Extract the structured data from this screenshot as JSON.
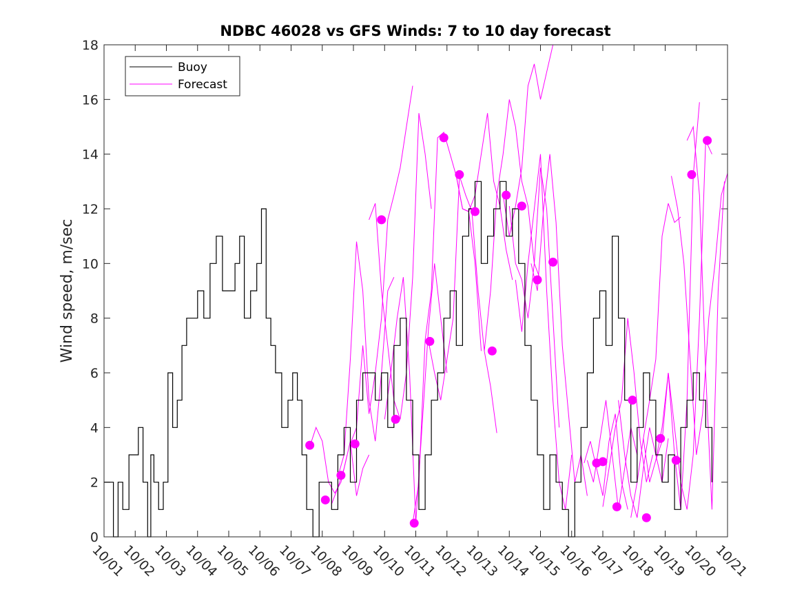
{
  "chart_data": {
    "type": "line",
    "title": "NDBC 46028 vs GFS Winds: 7 to 10 day forecast",
    "xlabel": "",
    "ylabel": "Wind speed, m/sec",
    "xlim": [
      0,
      20
    ],
    "ylim": [
      0,
      18
    ],
    "yticks": [
      0,
      2,
      4,
      6,
      8,
      10,
      12,
      14,
      16,
      18
    ],
    "xtick_labels": [
      "10/01",
      "10/02",
      "10/03",
      "10/04",
      "10/05",
      "10/06",
      "10/07",
      "10/08",
      "10/09",
      "10/10",
      "10/11",
      "10/12",
      "10/13",
      "10/14",
      "10/15",
      "10/16",
      "10/17",
      "10/18",
      "10/19",
      "10/20",
      "10/21"
    ],
    "legend": {
      "position": "top-left",
      "entries": [
        {
          "name": "Buoy",
          "color": "#000000"
        },
        {
          "name": "Forecast",
          "color": "#ff00ff"
        }
      ]
    },
    "buoy": {
      "name": "Buoy",
      "color": "#000000",
      "x": [
        0,
        0.15,
        0.3,
        0.45,
        0.6,
        0.8,
        1.0,
        1.1,
        1.25,
        1.4,
        1.5,
        1.6,
        1.75,
        1.9,
        2.05,
        2.2,
        2.35,
        2.5,
        2.65,
        2.8,
        3.0,
        3.2,
        3.4,
        3.6,
        3.8,
        4.0,
        4.2,
        4.35,
        4.5,
        4.7,
        4.9,
        5.05,
        5.2,
        5.35,
        5.5,
        5.7,
        5.9,
        6.05,
        6.2,
        6.35,
        6.5,
        6.7,
        6.9,
        7.1,
        7.3,
        7.5,
        7.7,
        7.9,
        8.1,
        8.3,
        8.5,
        8.7,
        8.9,
        9.1,
        9.3,
        9.5,
        9.7,
        9.9,
        10.1,
        10.3,
        10.5,
        10.7,
        10.9,
        11.1,
        11.3,
        11.5,
        11.7,
        11.9,
        12.1,
        12.3,
        12.5,
        12.7,
        12.9,
        13.1,
        13.3,
        13.5,
        13.7,
        13.9,
        14.1,
        14.3,
        14.5,
        14.7,
        14.9,
        15.1,
        15.3,
        15.5,
        15.7,
        15.9,
        16.1,
        16.3,
        16.5,
        16.7,
        16.9,
        17.1,
        17.3,
        17.5,
        17.7,
        17.9,
        18.1,
        18.3,
        18.5,
        18.7,
        18.9,
        19.1,
        19.3,
        19.5
      ],
      "values": [
        2,
        2,
        0,
        2,
        1,
        3,
        3,
        4,
        2,
        0,
        3,
        2,
        1,
        2,
        6,
        4,
        5,
        7,
        8,
        8,
        9,
        8,
        10,
        11,
        9,
        9,
        10,
        11,
        8,
        9,
        10,
        12,
        8,
        7,
        6,
        4,
        5,
        6,
        5,
        3,
        1,
        0,
        2,
        2,
        1,
        3,
        4,
        2,
        5,
        6,
        6,
        5,
        6,
        4,
        7,
        8,
        5,
        3,
        1,
        3,
        5,
        6,
        8,
        9,
        7,
        11,
        12,
        13,
        10,
        11,
        12,
        13,
        11,
        12,
        10,
        7,
        5,
        3,
        1,
        3,
        2,
        1,
        0,
        2,
        4,
        6,
        8,
        9,
        7,
        11,
        8,
        5,
        2,
        4,
        6,
        5,
        3,
        2,
        3,
        1,
        4,
        5,
        6,
        5,
        4,
        2
      ]
    },
    "forecast_series": [
      {
        "name": "Forecast",
        "x": [
          6.6,
          6.8,
          7.0,
          7.2,
          7.4,
          7.6,
          7.8
        ],
        "values": [
          3.3,
          4.0,
          3.5,
          2.0,
          1.6,
          2.0,
          3.0
        ]
      },
      {
        "name": "Forecast",
        "x": [
          7.3,
          7.5,
          7.7,
          7.9,
          8.1,
          8.3,
          8.5
        ],
        "values": [
          1.2,
          1.8,
          2.5,
          3.5,
          1.5,
          2.5,
          3.0
        ]
      },
      {
        "name": "Forecast",
        "x": [
          7.5,
          7.7,
          7.9,
          8.1,
          8.3,
          8.5,
          8.7,
          8.9,
          9.1,
          9.3
        ],
        "values": [
          2.2,
          3.0,
          6.5,
          10.8,
          9.0,
          5.0,
          3.5,
          6.0,
          9.0,
          9.5
        ]
      },
      {
        "name": "Forecast",
        "x": [
          7.9,
          8.1,
          8.3,
          8.5,
          8.7,
          8.9,
          9.1,
          9.3,
          9.5,
          9.7,
          9.9
        ],
        "values": [
          3.4,
          4.0,
          7.0,
          4.5,
          6.0,
          8.0,
          11.6,
          12.5,
          13.5,
          15.0,
          16.5
        ]
      },
      {
        "name": "Forecast",
        "x": [
          8.5,
          8.7,
          8.9,
          9.1,
          9.3,
          9.5,
          9.7,
          9.9,
          10.1,
          10.3,
          10.5
        ],
        "values": [
          11.6,
          12.2,
          9.0,
          7.0,
          5.0,
          4.3,
          6.0,
          9.5,
          15.5,
          14.0,
          12.0
        ]
      },
      {
        "name": "Forecast",
        "x": [
          9.0,
          9.2,
          9.4,
          9.6,
          9.8,
          10.0,
          10.2,
          10.4,
          10.6,
          10.8,
          11.0
        ],
        "values": [
          4.3,
          6.0,
          8.0,
          9.5,
          6.0,
          0.5,
          4.0,
          7.5,
          10.0,
          8.0,
          6.0
        ]
      },
      {
        "name": "Forecast",
        "x": [
          9.9,
          10.1,
          10.3,
          10.5,
          10.7,
          10.9,
          11.1,
          11.3,
          11.5,
          11.7,
          11.9,
          12.1
        ],
        "values": [
          0.5,
          2.0,
          7.2,
          9.0,
          14.6,
          14.8,
          14.0,
          13.2,
          12.0,
          11.9,
          10.0,
          6.8
        ]
      },
      {
        "name": "Forecast",
        "x": [
          10.4,
          10.6,
          10.8,
          11.0,
          11.2,
          11.4,
          11.6,
          11.8,
          12.0,
          12.2,
          12.4,
          12.6
        ],
        "values": [
          7.2,
          6.0,
          5.0,
          6.5,
          8.0,
          13.2,
          12.5,
          11.9,
          9.0,
          6.8,
          5.5,
          3.8
        ]
      },
      {
        "name": "Forecast",
        "x": [
          11.3,
          11.5,
          11.7,
          11.9,
          12.1,
          12.3,
          12.5,
          12.7,
          12.9,
          13.1
        ],
        "values": [
          13.2,
          12.0,
          11.9,
          12.5,
          14.0,
          15.5,
          13.0,
          12.1,
          10.5,
          9.4
        ]
      },
      {
        "name": "Forecast",
        "x": [
          12.2,
          12.4,
          12.6,
          12.8,
          13.0,
          13.2,
          13.4,
          13.6,
          13.8,
          14.0
        ],
        "values": [
          6.8,
          9.0,
          12.5,
          14.0,
          16.0,
          15.0,
          13.0,
          12.1,
          10.0,
          9.4
        ]
      },
      {
        "name": "Forecast",
        "x": [
          12.8,
          13.0,
          13.2,
          13.4,
          13.6,
          13.8,
          14.0,
          14.2,
          14.4
        ],
        "values": [
          12.5,
          11.0,
          12.1,
          13.5,
          16.5,
          17.3,
          16.0,
          17.0,
          18.0
        ]
      },
      {
        "name": "Forecast",
        "x": [
          13.0,
          13.2,
          13.4,
          13.6,
          13.8,
          14.0,
          14.2,
          14.4,
          14.6
        ],
        "values": [
          12.1,
          10.0,
          9.4,
          8.0,
          10.0,
          13.5,
          12.0,
          8.0,
          4.0
        ]
      },
      {
        "name": "Forecast",
        "x": [
          13.2,
          13.4,
          13.6,
          13.8,
          14.0,
          14.2,
          14.4,
          14.6,
          14.8,
          15.0
        ],
        "values": [
          9.4,
          7.5,
          10.0,
          12.0,
          14.0,
          9.0,
          5.0,
          2.0,
          1.0,
          3.0
        ]
      },
      {
        "name": "Forecast",
        "x": [
          13.7,
          13.9,
          14.1,
          14.3,
          14.5,
          14.7,
          14.9,
          15.1,
          15.3,
          15.5
        ],
        "values": [
          10.0,
          9.0,
          12.0,
          14.0,
          11.5,
          7.0,
          4.5,
          2.0,
          3.0,
          1.5
        ]
      },
      {
        "name": "Forecast",
        "x": [
          15.4,
          15.6,
          15.8,
          16.0,
          16.2,
          16.4,
          16.6,
          16.8
        ],
        "values": [
          2.7,
          3.5,
          2.5,
          1.5,
          3.5,
          4.5,
          2.0,
          1.0
        ]
      },
      {
        "name": "Forecast",
        "x": [
          15.5,
          15.7,
          15.9,
          16.1,
          16.3,
          16.5,
          16.7,
          16.9,
          17.1
        ],
        "values": [
          2.8,
          2.0,
          3.5,
          5.0,
          3.0,
          1.0,
          2.5,
          4.0,
          3.0
        ]
      },
      {
        "name": "Forecast",
        "x": [
          16.0,
          16.2,
          16.4,
          16.6,
          16.8,
          17.0,
          17.2,
          17.4,
          17.6
        ],
        "values": [
          1.1,
          2.5,
          4.0,
          5.0,
          8.0,
          6.0,
          3.5,
          2.0,
          3.0
        ]
      },
      {
        "name": "Forecast",
        "x": [
          16.5,
          16.7,
          16.9,
          17.1,
          17.3,
          17.5,
          17.7,
          17.9,
          18.1
        ],
        "values": [
          5.0,
          3.0,
          1.5,
          0.7,
          2.5,
          4.0,
          3.0,
          2.0,
          3.6
        ]
      },
      {
        "name": "Forecast",
        "x": [
          16.9,
          17.1,
          17.3,
          17.5,
          17.7,
          17.9,
          18.1,
          18.3,
          18.5
        ],
        "values": [
          0.7,
          2.0,
          3.6,
          5.0,
          6.5,
          11.0,
          12.2,
          11.5,
          11.7
        ]
      },
      {
        "name": "Forecast",
        "x": [
          17.3,
          17.5,
          17.7,
          17.9,
          18.1,
          18.3,
          18.5,
          18.7,
          18.9,
          19.1
        ],
        "values": [
          3.6,
          2.0,
          2.8,
          4.0,
          6.0,
          3.0,
          1.0,
          5.0,
          13.2,
          15.9
        ]
      },
      {
        "name": "Forecast",
        "x": [
          17.7,
          17.9,
          18.1,
          18.3,
          18.5,
          18.7,
          18.9,
          19.1,
          19.3,
          19.5
        ],
        "values": [
          2.8,
          3.5,
          6.0,
          4.0,
          2.0,
          1.0,
          3.0,
          8.0,
          14.5,
          14.0
        ]
      },
      {
        "name": "Forecast",
        "x": [
          18.2,
          18.4,
          18.6,
          18.8,
          19.0,
          19.2,
          19.4,
          19.6,
          19.8,
          20.0
        ],
        "values": [
          13.2,
          12.0,
          10.0,
          6.5,
          3.0,
          4.5,
          8.0,
          10.0,
          12.5,
          13.3
        ]
      },
      {
        "name": "Forecast",
        "x": [
          18.7,
          18.9,
          19.1,
          19.3,
          19.5,
          19.7,
          19.9
        ],
        "values": [
          14.5,
          15.0,
          12.5,
          6.0,
          1.0,
          9.0,
          13.0
        ]
      }
    ],
    "forecast_points": [
      {
        "x": 6.6,
        "y": 3.35
      },
      {
        "x": 7.1,
        "y": 1.35
      },
      {
        "x": 7.6,
        "y": 2.25
      },
      {
        "x": 8.05,
        "y": 3.4
      },
      {
        "x": 8.9,
        "y": 11.6
      },
      {
        "x": 9.35,
        "y": 4.3
      },
      {
        "x": 9.95,
        "y": 0.5
      },
      {
        "x": 10.45,
        "y": 7.15
      },
      {
        "x": 10.9,
        "y": 14.6
      },
      {
        "x": 11.4,
        "y": 13.25
      },
      {
        "x": 11.9,
        "y": 11.9
      },
      {
        "x": 12.45,
        "y": 6.8
      },
      {
        "x": 12.9,
        "y": 12.5
      },
      {
        "x": 13.4,
        "y": 12.1
      },
      {
        "x": 13.9,
        "y": 9.4
      },
      {
        "x": 14.4,
        "y": 10.05
      },
      {
        "x": 15.8,
        "y": 2.7
      },
      {
        "x": 16.0,
        "y": 2.75
      },
      {
        "x": 16.45,
        "y": 1.1
      },
      {
        "x": 16.95,
        "y": 5.0
      },
      {
        "x": 17.4,
        "y": 0.7
      },
      {
        "x": 17.85,
        "y": 3.6
      },
      {
        "x": 18.35,
        "y": 2.8
      },
      {
        "x": 18.85,
        "y": 13.25
      },
      {
        "x": 19.35,
        "y": 14.5
      }
    ]
  }
}
